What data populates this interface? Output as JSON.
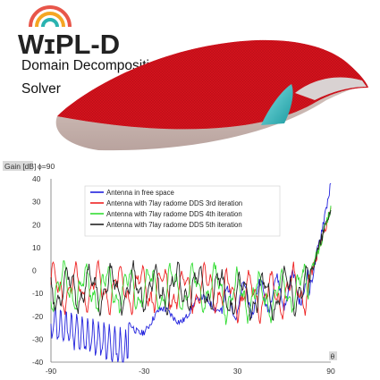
{
  "logo": {
    "brand": "WIPL-D",
    "caption_line1": "Domain Decomposition",
    "caption_line2": "Solver",
    "arc_colors": [
      "#e8564a",
      "#f5a623",
      "#2bb3b0"
    ]
  },
  "model_colors": {
    "radome": "#d4121c",
    "base": "#c9b5b0",
    "antenna": "#3ec3c8"
  },
  "chart_data": {
    "type": "line",
    "ylabel": "Gain [dB]",
    "annotation": "ϕ=90",
    "xlabel": "θ",
    "xlim": [
      -90,
      90
    ],
    "ylim": [
      -40,
      40
    ],
    "xticks": [
      "-90",
      "-30",
      "30",
      "90"
    ],
    "yticks": [
      "40",
      "30",
      "20",
      "10",
      "0",
      "-10",
      "-20",
      "-30",
      "-40"
    ],
    "grid": false,
    "legend_position": "top-left",
    "series": [
      {
        "name": "Antenna in free space",
        "color": "#2222dd"
      },
      {
        "name": "Antenna with 7lay radome DDS 3rd iteration",
        "color": "#ee2222"
      },
      {
        "name": "Antenna with 7lay radome DDS 4th iteration",
        "color": "#33dd33"
      },
      {
        "name": "Antenna with 7lay radome DDS 5th iteration",
        "color": "#222222"
      }
    ]
  }
}
